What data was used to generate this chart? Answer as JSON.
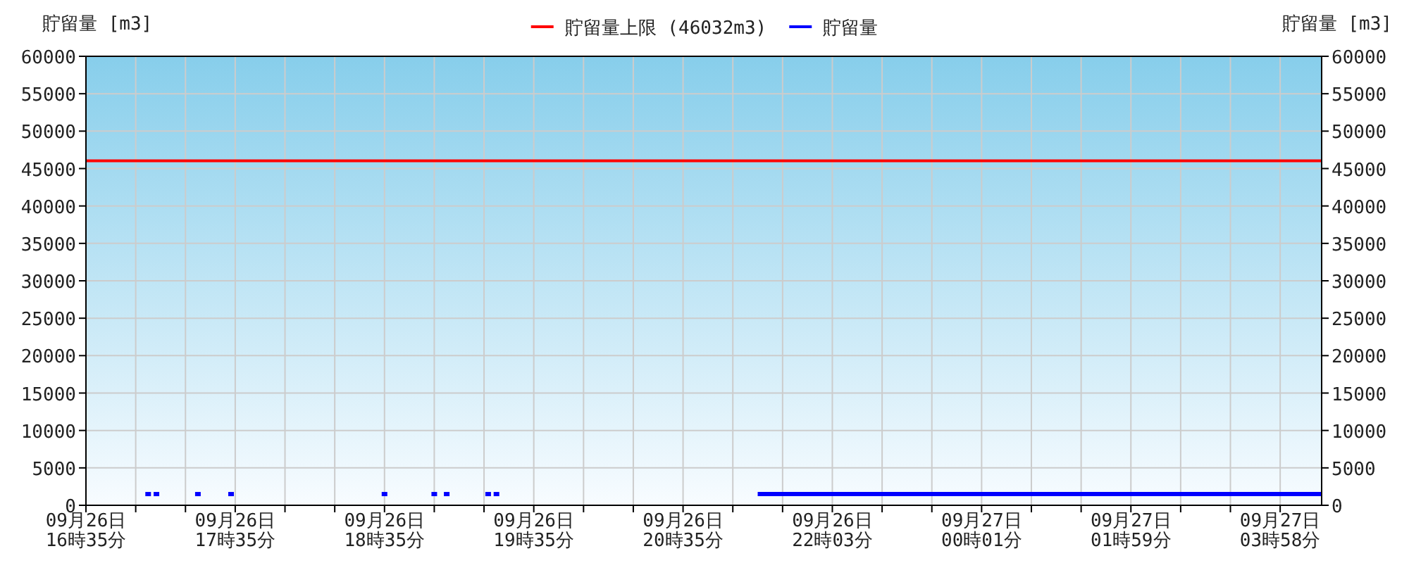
{
  "chart_data": {
    "type": "line",
    "ylabel": "貯留量 [m3]",
    "y2label": "貯留量 [m3]",
    "categories": [
      "09月26日\n16時35分",
      null,
      null,
      null,
      null,
      null,
      null,
      null,
      null,
      null,
      null,
      null,
      null,
      null,
      null,
      null,
      null,
      null,
      null,
      null,
      null,
      null,
      null,
      null,
      null,
      null,
      null,
      null,
      null,
      null,
      null,
      null,
      null,
      null,
      null,
      null,
      "09月26日\n17時35分",
      null,
      null,
      null,
      null,
      null,
      null,
      null,
      null,
      null,
      null,
      null,
      null,
      null,
      null,
      null,
      null,
      null,
      null,
      null,
      null,
      null,
      null,
      null,
      null,
      null,
      null,
      null,
      null,
      null,
      null,
      null,
      null,
      null,
      null,
      null,
      "09月26日\n18時35分",
      null,
      null,
      null,
      null,
      null,
      null,
      null,
      null,
      null,
      null,
      null,
      null,
      null,
      null,
      null,
      null,
      null,
      null,
      null,
      null,
      null,
      null,
      null,
      null,
      null,
      null,
      null,
      null,
      null,
      null,
      null,
      null,
      null,
      null,
      null,
      "09月26日\n19時35分",
      null,
      null,
      null,
      null,
      null,
      null,
      null,
      null,
      null,
      null,
      null,
      null,
      null,
      null,
      null,
      null,
      null,
      null,
      null,
      null,
      null,
      null,
      null,
      null,
      null,
      null,
      null,
      null,
      null,
      null,
      null,
      null,
      null,
      null,
      null,
      "09月26日\n20時35分",
      null,
      null,
      null,
      null,
      null,
      null,
      null,
      null,
      null,
      null,
      null,
      null,
      null,
      null,
      null,
      null,
      null,
      null,
      null,
      null,
      null,
      null,
      null,
      null,
      null,
      null,
      null,
      null,
      null,
      null,
      null,
      null,
      null,
      null,
      null,
      "09月26日\n22時03分",
      null,
      null,
      null,
      null,
      null,
      null,
      null,
      null,
      null,
      null,
      null,
      null,
      null,
      null,
      null,
      null,
      null,
      null,
      null,
      null,
      null,
      null,
      null,
      null,
      null,
      null,
      null,
      null,
      null,
      null,
      null,
      null,
      null,
      null,
      null,
      "09月27日\n00時01分",
      null,
      null,
      null,
      null,
      null,
      null,
      null,
      null,
      null,
      null,
      null,
      null,
      null,
      null,
      null,
      null,
      null,
      null,
      null,
      null,
      null,
      null,
      null,
      null,
      null,
      null,
      null,
      null,
      null,
      null,
      null,
      null,
      null,
      null,
      null,
      "09月27日\n01時59分",
      null,
      null,
      null,
      null,
      null,
      null,
      null,
      null,
      null,
      null,
      null,
      null,
      null,
      null,
      null,
      null,
      null,
      null,
      null,
      null,
      null,
      null,
      null,
      null,
      null,
      null,
      null,
      null,
      null,
      null,
      null,
      null,
      null,
      null,
      null,
      "09月27日\n03時58分",
      null,
      null,
      null,
      null,
      null,
      null,
      null,
      null,
      null,
      null
    ],
    "ylim": [
      0,
      60000
    ],
    "yticks": [
      0,
      5000,
      10000,
      15000,
      20000,
      25000,
      30000,
      35000,
      40000,
      45000,
      50000,
      55000,
      60000
    ],
    "y2lim": [
      0,
      60000
    ],
    "y2ticks": [
      0,
      5000,
      10000,
      15000,
      20000,
      25000,
      30000,
      35000,
      40000,
      45000,
      50000,
      55000,
      60000
    ],
    "grid": true,
    "legend": "top",
    "line_style": "solid",
    "ref_lines": [
      {
        "axis": "y",
        "value": 46032,
        "label": "貯留量上限 (46032m3)",
        "color": "#ff0000"
      }
    ],
    "series": [
      {
        "name": "貯留量",
        "color": "#0000ff",
        "values": [
          null,
          null,
          null,
          null,
          null,
          null,
          null,
          null,
          null,
          null,
          null,
          null,
          null,
          null,
          null,
          1500,
          null,
          1500,
          null,
          null,
          null,
          null,
          null,
          null,
          null,
          null,
          null,
          1500,
          null,
          null,
          null,
          null,
          null,
          null,
          null,
          1500,
          null,
          null,
          null,
          null,
          null,
          null,
          null,
          null,
          null,
          null,
          null,
          null,
          null,
          null,
          null,
          null,
          null,
          null,
          null,
          null,
          null,
          null,
          null,
          null,
          null,
          null,
          null,
          null,
          null,
          null,
          null,
          null,
          null,
          null,
          null,
          null,
          1500,
          null,
          null,
          null,
          null,
          null,
          null,
          null,
          null,
          null,
          null,
          null,
          1500,
          null,
          null,
          1500,
          null,
          null,
          null,
          null,
          null,
          null,
          null,
          null,
          null,
          1500,
          null,
          1500,
          null,
          null,
          null,
          null,
          null,
          null,
          null,
          null,
          null,
          null,
          null,
          null,
          null,
          null,
          null,
          null,
          null,
          null,
          null,
          null,
          null,
          null,
          null,
          null,
          null,
          null,
          null,
          null,
          null,
          null,
          null,
          null,
          null,
          null,
          null,
          null,
          null,
          null,
          null,
          null,
          null,
          null,
          null,
          null,
          null,
          null,
          null,
          null,
          null,
          null,
          null,
          null,
          null,
          null,
          null,
          null,
          null,
          null,
          null,
          null,
          null,
          null,
          1500,
          1500,
          1500,
          1500,
          1500,
          1500,
          1500,
          1500,
          1500,
          1500,
          1500,
          1500,
          1500,
          1500,
          1500,
          1500,
          1500,
          1500,
          1500,
          1500,
          1500,
          1500,
          1500,
          1500,
          1500,
          1500,
          1500,
          1500,
          1500,
          1500,
          1500,
          1500,
          1500,
          1500,
          1500,
          1500,
          1500,
          1500,
          1500,
          1500,
          1500,
          1500,
          1500,
          1500,
          1500,
          1500,
          1500,
          1500,
          1500,
          1500,
          1500,
          1500,
          1500,
          1500,
          1500,
          1500,
          1500,
          1500,
          1500,
          1500,
          1500,
          1500,
          1500,
          1500,
          1500,
          1500,
          1500,
          1500,
          1500,
          1500,
          1500,
          1500,
          1500,
          1500,
          1500,
          1500,
          1500,
          1500,
          1500,
          1500,
          1500,
          1500,
          1500,
          1500,
          1500,
          1500,
          1500,
          1500,
          1500,
          1500,
          1500,
          1500,
          1500,
          1500,
          1500,
          1500,
          1500,
          1500,
          1500,
          1500,
          1500,
          1500,
          1500,
          1500,
          1500,
          1500,
          1500,
          1500,
          1500,
          1500,
          1500,
          1500,
          1500,
          1500,
          1500,
          1500,
          1500,
          1500,
          1500,
          1500,
          1500,
          1500,
          1500,
          1500,
          1500,
          1500,
          1500,
          1500,
          1500,
          1500,
          1500,
          1500,
          1500,
          1500,
          1500,
          1500,
          1500
        ]
      }
    ]
  }
}
